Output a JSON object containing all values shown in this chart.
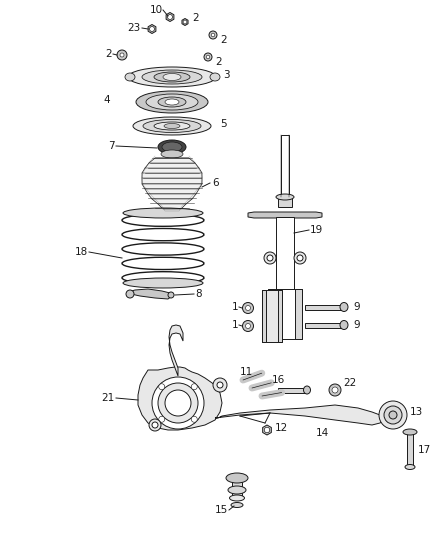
{
  "background_color": "#ffffff",
  "fig_width": 4.38,
  "fig_height": 5.33,
  "dpi": 100,
  "line_color": "#1a1a1a",
  "text_color": "#1a1a1a",
  "font_size": 7.5,
  "part_fill": "#e8e8e8",
  "part_fill_dark": "#c0c0c0",
  "part_fill_mid": "#d4d4d4"
}
